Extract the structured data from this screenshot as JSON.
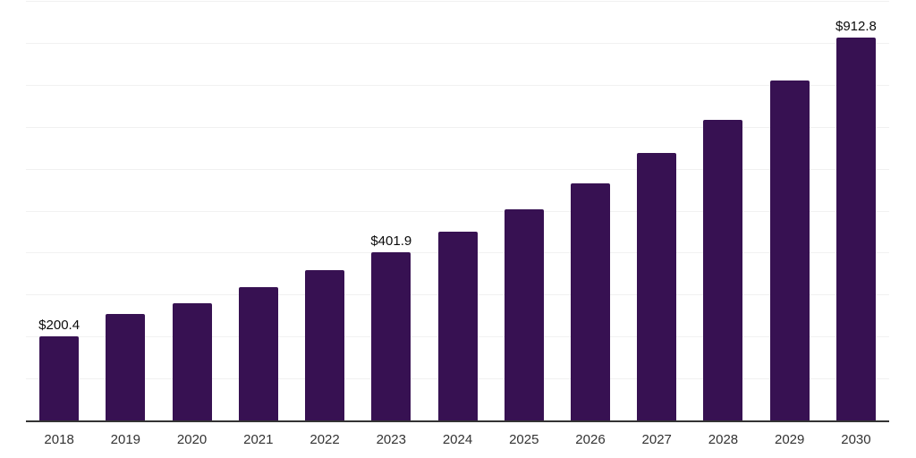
{
  "chart_data": {
    "type": "bar",
    "categories": [
      "2018",
      "2019",
      "2020",
      "2021",
      "2022",
      "2023",
      "2024",
      "2025",
      "2026",
      "2027",
      "2028",
      "2029",
      "2030"
    ],
    "values": [
      200.4,
      254.5,
      279.4,
      317.9,
      357.5,
      401.9,
      450.1,
      503.0,
      565.2,
      637.0,
      717.3,
      809.5,
      912.8
    ],
    "data_labels": {
      "2018": "$200.4",
      "2023": "$401.9",
      "2030": "$912.8"
    },
    "ylim": [
      0,
      1000
    ],
    "gridline_interval": 100,
    "grid": "horizontal",
    "legend": "none",
    "colors": {
      "bar": "#371152",
      "axis_line": "#333333",
      "gridline": "#f1f1f1",
      "data_label_text": "#0a0a0a",
      "tick_label_text": "#333333",
      "background": "#ffffff"
    }
  }
}
